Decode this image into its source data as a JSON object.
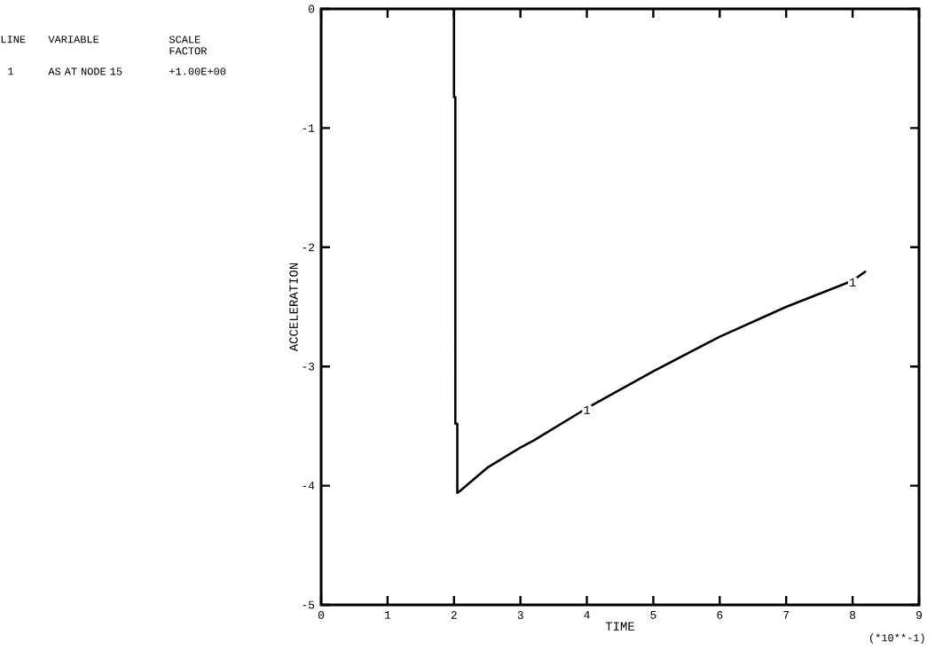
{
  "chart_data": {
    "type": "line",
    "xlabel": "TIME",
    "ylabel": "ACCELERATION",
    "xlim": [
      0,
      9
    ],
    "ylim": [
      -5,
      0
    ],
    "xticks": [
      0,
      1,
      2,
      3,
      4,
      5,
      6,
      7,
      8,
      9
    ],
    "yticks": [
      -5,
      -4,
      -3,
      -2,
      -1,
      0
    ],
    "grid": false,
    "marker": "none",
    "line_style": "solid",
    "series": [
      {
        "color": "#000000",
        "x": [
          2.0,
          2.0,
          2.02,
          2.02,
          2.05,
          2.05,
          2.1,
          2.5,
          3.0,
          3.2,
          4.0,
          5.0,
          6.0,
          7.0,
          8.0,
          8.2
        ],
        "values": [
          0,
          -0.74,
          -0.74,
          -3.48,
          -3.48,
          -4.06,
          -4.04,
          -3.85,
          -3.68,
          -3.62,
          -3.35,
          -3.04,
          -2.75,
          -2.5,
          -2.28,
          -2.2
        ]
      }
    ],
    "annotations": [
      "LINE",
      "VARIABLE",
      "SCALE FACTOR",
      "1",
      "AS AT NODE 15",
      "+1.00E+00",
      "(*10**-1)",
      {
        "text": "1",
        "x": 4,
        "y": -3.35
      },
      {
        "text": "1",
        "x": 8,
        "y": -2.28
      }
    ]
  }
}
